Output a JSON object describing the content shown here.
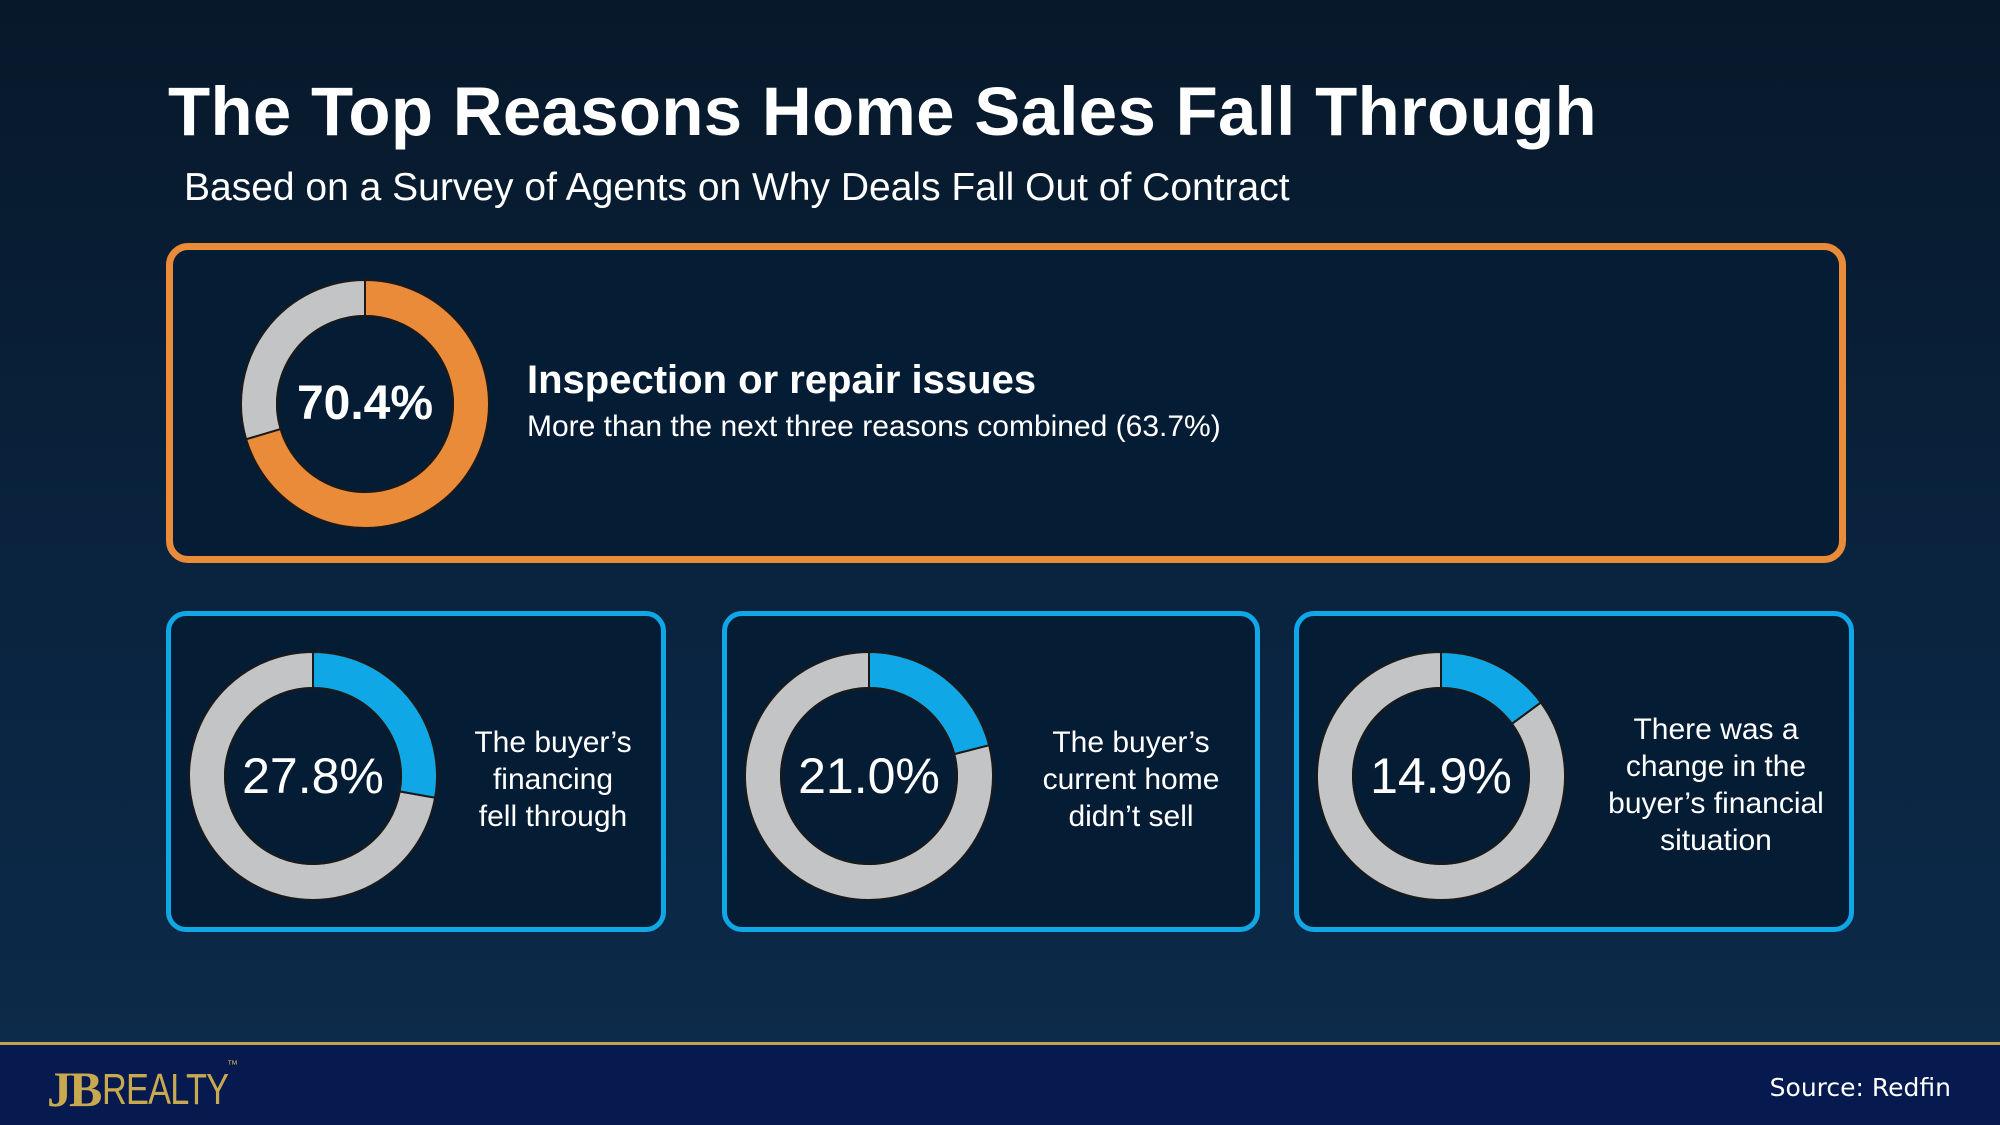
{
  "title": "The Top Reasons Home Sales Fall Through",
  "subtitle": "Based on a Survey of Agents on Why Deals Fall Out of Contract",
  "colors": {
    "track": "#c2c4c5",
    "highlight": "#e98b38",
    "accent": "#10a7e6",
    "gold": "#c9a94f"
  },
  "chart_data": [
    {
      "type": "pie",
      "value": 70.4,
      "label": "70.4%",
      "heading": "Inspection or repair issues",
      "description": "More than the next three reasons combined (63.7%)",
      "color": "#e98b38"
    },
    {
      "type": "pie",
      "value": 27.8,
      "label": "27.8%",
      "lines": [
        "The buyer’s",
        "financing",
        "fell through"
      ],
      "color": "#10a7e6"
    },
    {
      "type": "pie",
      "value": 21.0,
      "label": "21.0%",
      "lines": [
        "The buyer’s",
        "current home",
        "didn’t sell"
      ],
      "color": "#10a7e6"
    },
    {
      "type": "pie",
      "value": 14.9,
      "label": "14.9%",
      "lines": [
        "There was a",
        "change in the",
        "buyer’s financial",
        "situation"
      ],
      "color": "#10a7e6"
    }
  ],
  "footer": {
    "logo_jb": "JB",
    "logo_realty": "REALTY",
    "logo_tm": "™",
    "source": "Source: Redfin"
  }
}
